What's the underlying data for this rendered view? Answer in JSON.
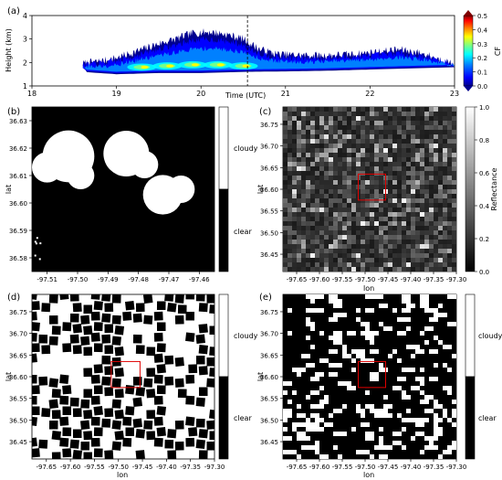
{
  "figure": {
    "panel_labels": [
      "(a)",
      "(b)",
      "(c)",
      "(d)",
      "(e)"
    ]
  },
  "chart_data": [
    {
      "panel": "(a)",
      "type": "heatmap",
      "xlabel": "Time (UTC)",
      "ylabel": "Height (km)",
      "xlim": [
        18,
        23
      ],
      "ylim": [
        1,
        4
      ],
      "x_ticks": [
        18,
        19,
        20,
        21,
        22,
        23
      ],
      "y_ticks": [
        1,
        2,
        3,
        4
      ],
      "marker_line_time": 20.55,
      "colorbar": {
        "label": "CF",
        "range": [
          0,
          0.5
        ],
        "ticks": [
          "0.0",
          "0.1",
          "0.2",
          "0.3",
          "0.4",
          "0.5"
        ],
        "colors": [
          "#00008f",
          "#0000ff",
          "#0080ff",
          "#00ffff",
          "#80ff80",
          "#ffff00",
          "#ff8000",
          "#ff0000",
          "#800000"
        ]
      },
      "cloud_top_profile": [
        [
          18.6,
          1.95
        ],
        [
          18.9,
          2.1
        ],
        [
          19.1,
          2.3
        ],
        [
          19.3,
          2.55
        ],
        [
          19.5,
          2.8
        ],
        [
          19.7,
          3.0
        ],
        [
          19.9,
          3.25
        ],
        [
          20.1,
          3.3
        ],
        [
          20.3,
          3.2
        ],
        [
          20.5,
          3.0
        ],
        [
          20.7,
          2.55
        ],
        [
          20.9,
          2.35
        ],
        [
          21.2,
          2.3
        ],
        [
          21.5,
          2.3
        ],
        [
          21.8,
          2.35
        ],
        [
          22.1,
          2.45
        ],
        [
          22.35,
          2.55
        ],
        [
          22.6,
          2.4
        ],
        [
          22.85,
          2.1
        ],
        [
          23.0,
          1.9
        ]
      ],
      "cloud_base_profile": [
        [
          18.6,
          1.6
        ],
        [
          19.0,
          1.5
        ],
        [
          19.5,
          1.55
        ],
        [
          20.0,
          1.55
        ],
        [
          20.5,
          1.6
        ],
        [
          21.0,
          1.62
        ],
        [
          21.5,
          1.65
        ],
        [
          22.0,
          1.7
        ],
        [
          22.5,
          1.75
        ],
        [
          23.0,
          1.8
        ]
      ],
      "high_cf_core": [
        [
          19.3,
          1.8
        ],
        [
          19.6,
          1.85
        ],
        [
          19.9,
          1.9
        ],
        [
          20.2,
          1.9
        ],
        [
          20.5,
          1.85
        ]
      ]
    },
    {
      "panel": "(b)",
      "type": "heatmap",
      "xlabel": "",
      "ylabel": "lat",
      "xlim": [
        -97.515,
        -97.455
      ],
      "ylim": [
        36.575,
        36.635
      ],
      "x_ticks": [
        "-97.51",
        "-97.50",
        "-97.49",
        "-97.48",
        "-97.47",
        "-97.46"
      ],
      "y_ticks": [
        "36.58",
        "36.59",
        "36.60",
        "36.61",
        "36.62",
        "36.63"
      ],
      "colorbar": {
        "labels": [
          "cloudy",
          "clear"
        ]
      },
      "clouds": [
        {
          "lon": -97.503,
          "lat": 36.617,
          "r": 0.0085
        },
        {
          "lon": -97.51,
          "lat": 36.613,
          "r": 0.005
        },
        {
          "lon": -97.499,
          "lat": 36.61,
          "r": 0.0045
        },
        {
          "lon": -97.484,
          "lat": 36.618,
          "r": 0.0075
        },
        {
          "lon": -97.478,
          "lat": 36.614,
          "r": 0.0045
        },
        {
          "lon": -97.472,
          "lat": 36.603,
          "r": 0.0065
        },
        {
          "lon": -97.466,
          "lat": 36.605,
          "r": 0.0045
        }
      ]
    },
    {
      "panel": "(c)",
      "type": "heatmap",
      "xlabel": "lon",
      "ylabel": "lat",
      "xlim": [
        -97.68,
        -97.3
      ],
      "ylim": [
        36.41,
        36.79
      ],
      "x_ticks": [
        "-97.65",
        "-97.60",
        "-97.55",
        "-97.50",
        "-97.45",
        "-97.40",
        "-97.35",
        "-97.30"
      ],
      "y_ticks": [
        "36.45",
        "36.50",
        "36.55",
        "36.60",
        "36.65",
        "36.70",
        "36.75"
      ],
      "colorbar": {
        "label": "Reflectance",
        "range": [
          0,
          1
        ],
        "ticks": [
          "0.0",
          "0.2",
          "0.4",
          "0.6",
          "0.8",
          "1.0"
        ]
      },
      "highlight_box": {
        "lon": [
          -97.515,
          -97.455
        ],
        "lat": [
          36.575,
          36.635
        ]
      }
    },
    {
      "panel": "(d)",
      "type": "heatmap",
      "xlabel": "lon",
      "ylabel": "lat",
      "xlim": [
        -97.68,
        -97.3
      ],
      "ylim": [
        36.41,
        36.79
      ],
      "x_ticks": [
        "-97.65",
        "-97.60",
        "-97.55",
        "-97.50",
        "-97.45",
        "-97.40",
        "-97.35",
        "-97.30"
      ],
      "y_ticks": [
        "36.45",
        "36.50",
        "36.55",
        "36.60",
        "36.65",
        "36.70",
        "36.75"
      ],
      "colorbar": {
        "labels": [
          "cloudy",
          "clear"
        ]
      },
      "highlight_box": {
        "lon": [
          -97.515,
          -97.455
        ],
        "lat": [
          36.575,
          36.635
        ]
      }
    },
    {
      "panel": "(e)",
      "type": "heatmap",
      "xlabel": "lon",
      "ylabel": "lat",
      "xlim": [
        -97.68,
        -97.3
      ],
      "ylim": [
        36.41,
        36.79
      ],
      "x_ticks": [
        "-97.65",
        "-97.60",
        "-97.55",
        "-97.50",
        "-97.45",
        "-97.40",
        "-97.35",
        "-97.30"
      ],
      "y_ticks": [
        "36.45",
        "36.50",
        "36.55",
        "36.60",
        "36.65",
        "36.70",
        "36.75"
      ],
      "colorbar": {
        "labels": [
          "cloudy",
          "clear"
        ]
      },
      "highlight_box": {
        "lon": [
          -97.515,
          -97.455
        ],
        "lat": [
          36.575,
          36.635
        ]
      }
    }
  ]
}
